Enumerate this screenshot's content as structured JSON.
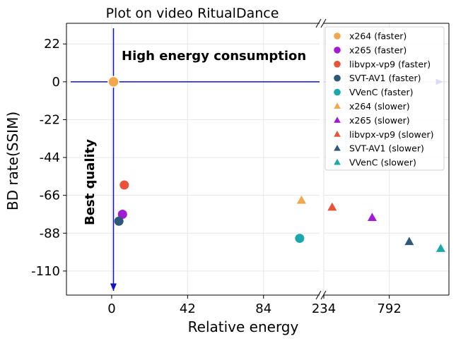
{
  "chart_data": {
    "type": "scatter",
    "title": "Plot on video RitualDance",
    "xlabel": "Relative energy",
    "ylabel": "BD rate(SSIM)",
    "ylim": [
      -124,
      34
    ],
    "y_ticks": [
      22,
      0,
      -22,
      -44,
      -66,
      -88,
      -110
    ],
    "broken_x_axis": true,
    "x_segments": [
      {
        "xlim": [
          -25,
          115
        ],
        "ticks": [
          0,
          42,
          84
        ]
      },
      {
        "xlim": [
          234,
          1300
        ],
        "ticks": [
          234,
          792
        ]
      }
    ],
    "grid": true,
    "legend_position": "top-right",
    "annotations": [
      {
        "text": "High energy consumption",
        "direction": "right"
      },
      {
        "text": "Best quality",
        "direction": "down"
      }
    ],
    "reference_point": {
      "x": 1,
      "y": 0,
      "color": "#f2a74b"
    },
    "series": [
      {
        "name": "x264 (faster)",
        "marker": "circle",
        "color": "#f2a74b",
        "points": []
      },
      {
        "name": "x265 (faster)",
        "marker": "circle",
        "color": "#a31ad6",
        "points": [
          {
            "x": 6,
            "y": -77
          }
        ]
      },
      {
        "name": "libvpx-vp9 (faster)",
        "marker": "circle",
        "color": "#e8533a",
        "points": [
          {
            "x": 7,
            "y": -60
          }
        ]
      },
      {
        "name": "SVT-AV1 (faster)",
        "marker": "circle",
        "color": "#2e5878",
        "points": [
          {
            "x": 4,
            "y": -81
          }
        ]
      },
      {
        "name": "VVenC (faster)",
        "marker": "circle",
        "color": "#1aa8ad",
        "points": [
          {
            "x": 104,
            "y": -91
          }
        ]
      },
      {
        "name": "x264 (slower)",
        "marker": "triangle",
        "color": "#f2a74b",
        "points": [
          {
            "x": 105,
            "y": -69
          }
        ]
      },
      {
        "name": "x265 (slower)",
        "marker": "triangle",
        "color": "#a31ad6",
        "points": [
          {
            "x": 646,
            "y": -79
          }
        ]
      },
      {
        "name": "libvpx-vp9 (slower)",
        "marker": "triangle",
        "color": "#e8533a",
        "points": [
          {
            "x": 305,
            "y": -73
          }
        ]
      },
      {
        "name": "SVT-AV1 (slower)",
        "marker": "triangle",
        "color": "#2e5878",
        "points": [
          {
            "x": 962,
            "y": -93
          }
        ]
      },
      {
        "name": "VVenC (slower)",
        "marker": "triangle",
        "color": "#1aa8ad",
        "points": [
          {
            "x": 1230,
            "y": -97
          }
        ]
      }
    ]
  }
}
